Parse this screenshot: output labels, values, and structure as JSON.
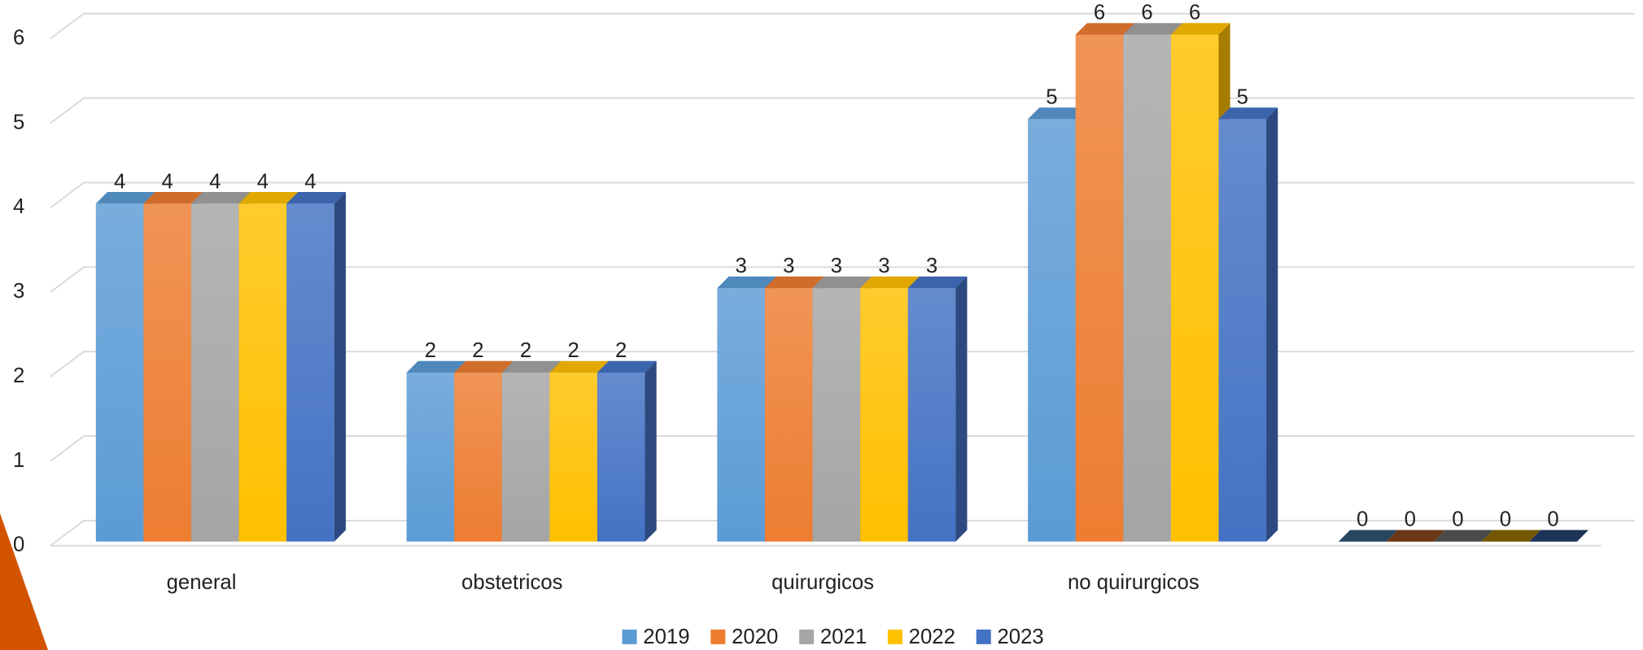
{
  "chart_data": {
    "type": "bar3d",
    "categories": [
      "general",
      "obstetricos",
      "quirurgicos",
      "no quirurgicos",
      null
    ],
    "series": [
      {
        "name": "2019",
        "color": "#5b9bd5",
        "values": [
          4,
          2,
          3,
          5,
          0
        ]
      },
      {
        "name": "2020",
        "color": "#ed7d31",
        "values": [
          4,
          2,
          3,
          6,
          0
        ]
      },
      {
        "name": "2021",
        "color": "#a5a5a5",
        "values": [
          4,
          2,
          3,
          6,
          0
        ]
      },
      {
        "name": "2022",
        "color": "#ffc000",
        "values": [
          4,
          2,
          3,
          6,
          0
        ]
      },
      {
        "name": "2023",
        "color": "#4472c4",
        "values": [
          4,
          2,
          3,
          5,
          0
        ]
      }
    ],
    "ylim": [
      0,
      6
    ],
    "yticks": [
      0,
      1,
      2,
      3,
      4,
      5,
      6
    ],
    "grid": true,
    "data_labels": true,
    "legend": "bottom"
  }
}
